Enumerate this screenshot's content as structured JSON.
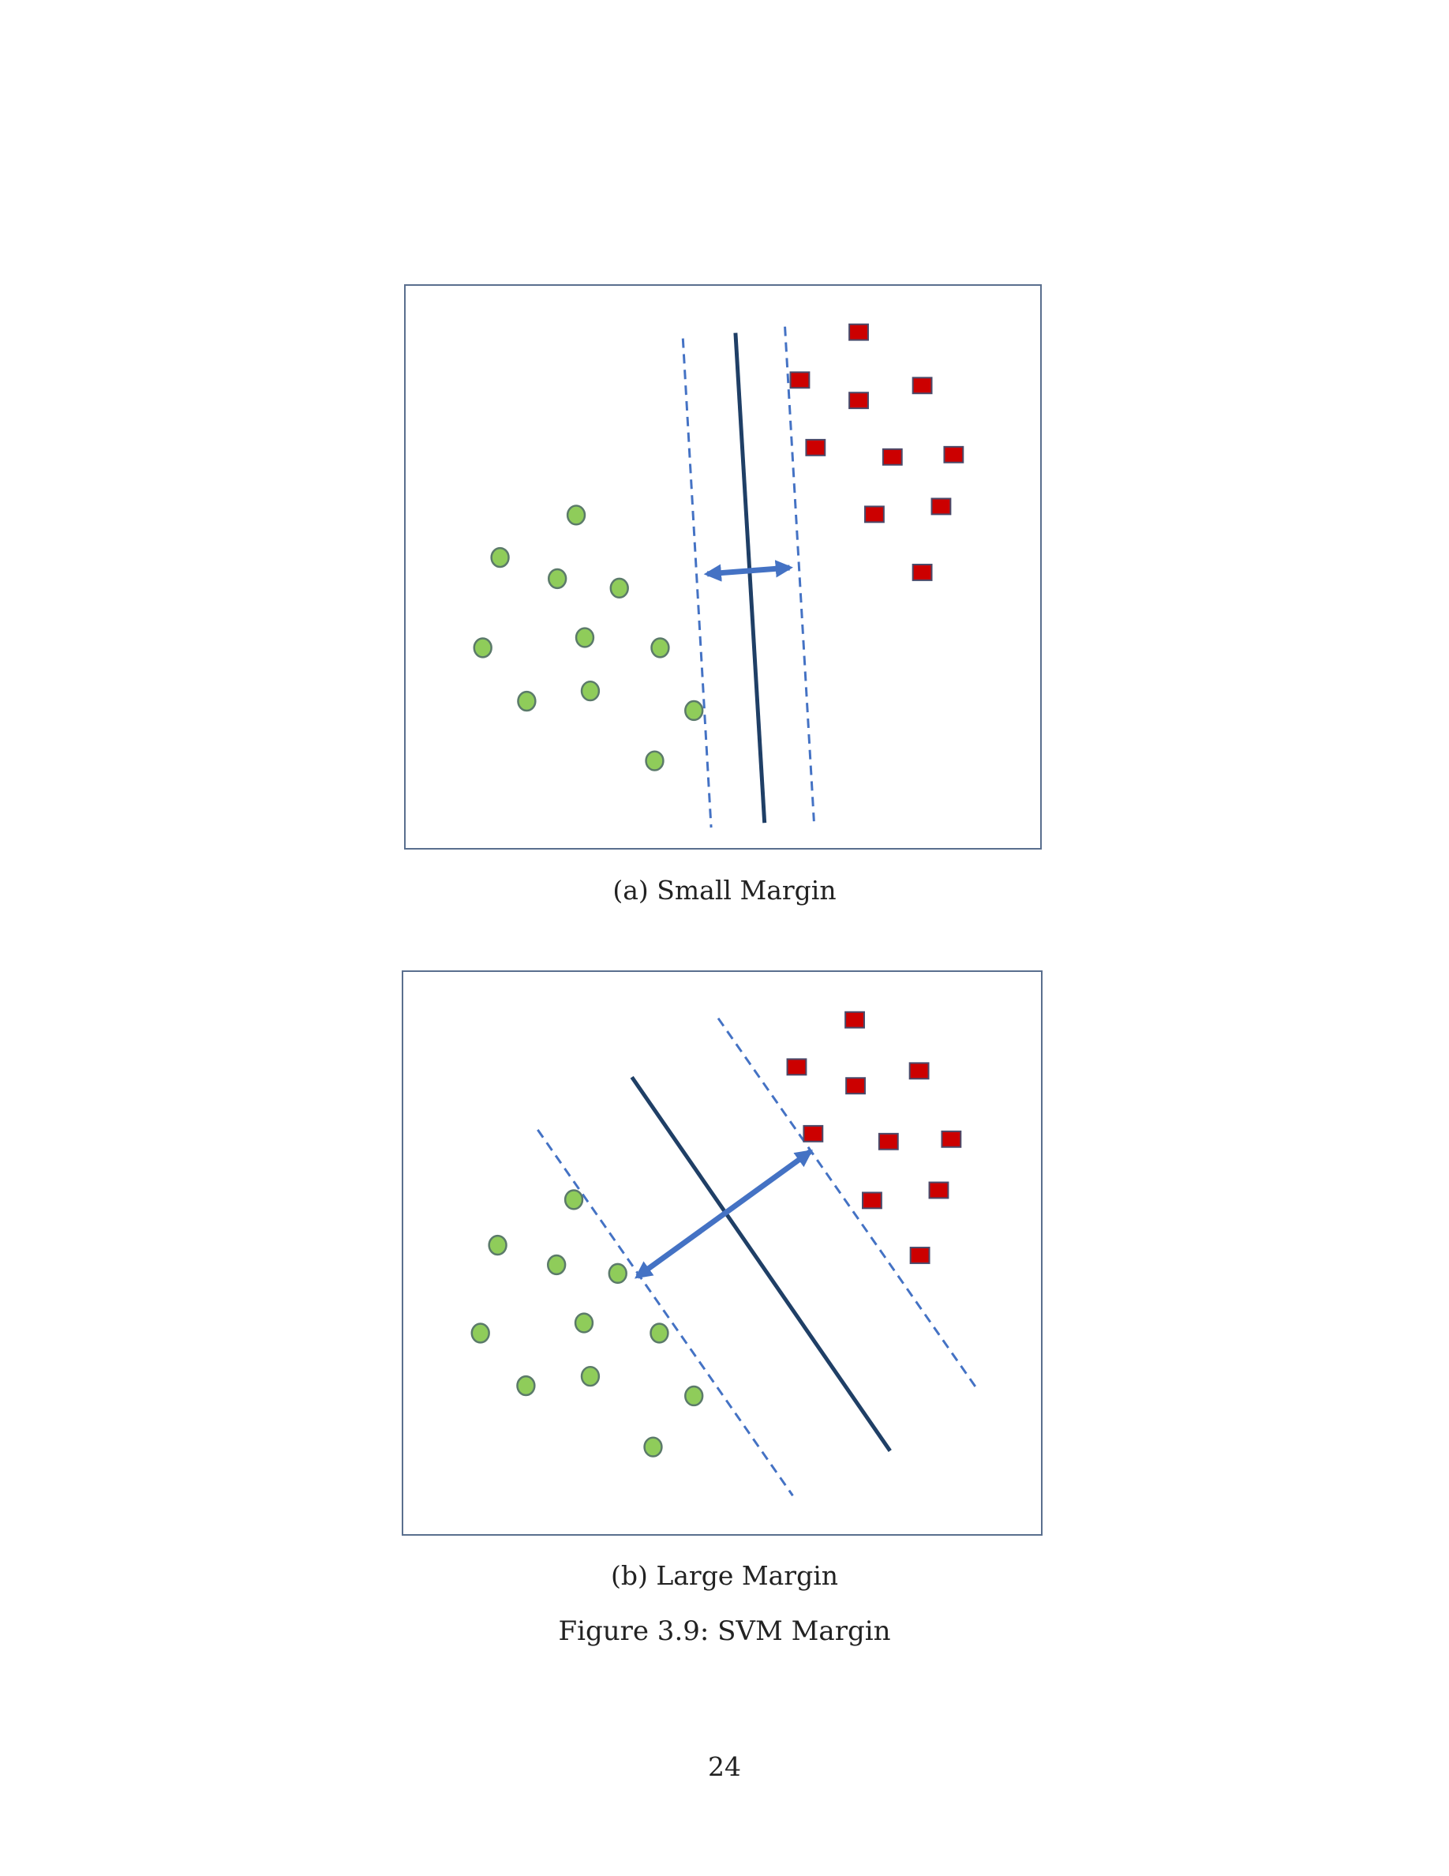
{
  "subfigures": [
    {
      "caption": "(a) Small Margin",
      "class_circles_color": "#8fcc5a",
      "class_squares_color": "#cc0000",
      "hyperplane_color": "#1f3f66",
      "margin_color": "#4472c4"
    },
    {
      "caption": "(b) Large Margin",
      "class_circles_color": "#8fcc5a",
      "class_squares_color": "#cc0000",
      "hyperplane_color": "#1f3f66",
      "margin_color": "#4472c4"
    }
  ],
  "figure_caption": "Figure 3.9: SVM Margin",
  "page_number": "24"
}
